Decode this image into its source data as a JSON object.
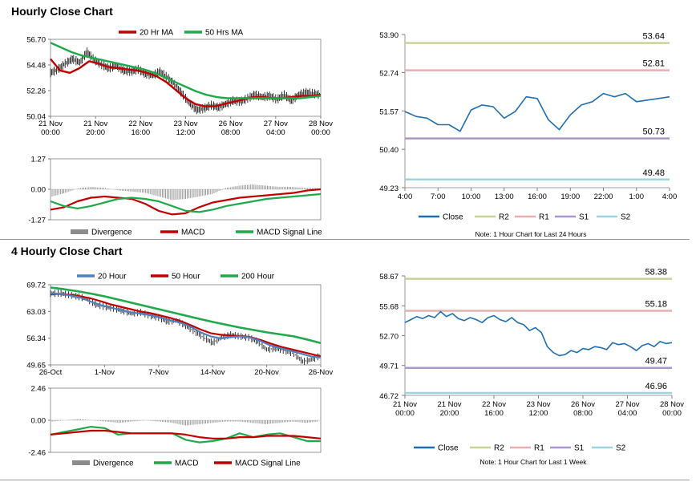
{
  "sections": {
    "hourly_title": "Hourly Close Chart",
    "four_hourly_title": "4 Hourly Close Chart"
  },
  "colors": {
    "ma_red": "#c00000",
    "ma_green": "#1ea94a",
    "blue": "#4f81bd",
    "close_line": "#1f6eb0",
    "r2": "#c6d49a",
    "r1": "#e7b0b0",
    "s1": "#ab97c9",
    "s2": "#9fd3df",
    "divergence": "#8c8c8c"
  },
  "chart_data": [
    {
      "id": "hourly-price",
      "type": "line",
      "title": "",
      "x_ticks": [
        "21 Nov\n00:00",
        "21 Nov\n20:00",
        "22 Nov\n16:00",
        "23 Nov\n12:00",
        "26 Nov\n08:00",
        "27 Nov\n04:00",
        "28 Nov\n00:00"
      ],
      "y_ticks": [
        50.04,
        52.26,
        54.48,
        56.7
      ],
      "ylim": [
        50.04,
        56.7
      ],
      "legend": [
        "20 Hr MA",
        "50 Hrs MA"
      ],
      "series": [
        {
          "name": "Close",
          "values": [
            53.8,
            54.1,
            54.6,
            55.0,
            54.7,
            55.6,
            54.9,
            54.5,
            54.2,
            54.4,
            54.0,
            53.9,
            54.1,
            53.7,
            53.6,
            53.9,
            53.4,
            52.8,
            52.0,
            51.2,
            50.6,
            50.7,
            51.0,
            50.8,
            51.1,
            51.4,
            51.3,
            51.6,
            51.9,
            51.7,
            51.8,
            51.5,
            51.9,
            51.4,
            51.9,
            52.1,
            52.0,
            51.9
          ]
        },
        {
          "name": "20 Hr MA",
          "values": [
            55.0,
            54.0,
            53.8,
            54.2,
            54.8,
            54.6,
            54.3,
            54.2,
            54.1,
            54.0,
            53.8,
            53.5,
            53.0,
            52.3,
            51.6,
            51.1,
            50.9,
            50.9,
            51.1,
            51.3,
            51.5,
            51.7,
            51.7,
            51.6,
            51.6,
            51.7,
            51.8,
            51.8,
            51.9
          ]
        },
        {
          "name": "50 Hrs MA",
          "values": [
            56.4,
            56.0,
            55.6,
            55.3,
            55.1,
            54.9,
            54.7,
            54.5,
            54.3,
            54.1,
            53.8,
            53.4,
            53.0,
            52.6,
            52.2,
            51.9,
            51.7,
            51.6,
            51.6,
            51.6,
            51.6,
            51.6,
            51.6,
            51.6,
            51.6,
            51.7,
            51.8
          ]
        }
      ]
    },
    {
      "id": "hourly-macd",
      "type": "line",
      "y_ticks": [
        -1.27,
        0.0,
        1.27
      ],
      "ylim": [
        -1.27,
        1.27
      ],
      "legend": [
        "Divergence",
        "MACD",
        "MACD Signal Line"
      ],
      "series": [
        {
          "name": "Divergence",
          "values": [
            -0.3,
            -0.15,
            0.05,
            0.1,
            0.05,
            -0.05,
            -0.1,
            -0.15,
            -0.3,
            -0.45,
            -0.4,
            -0.3,
            -0.2,
            0.05,
            0.15,
            0.2,
            0.15,
            0.1,
            0.1,
            0.05,
            0.05
          ]
        },
        {
          "name": "MACD",
          "values": [
            -0.85,
            -0.75,
            -0.5,
            -0.35,
            -0.3,
            -0.35,
            -0.4,
            -0.6,
            -0.9,
            -1.05,
            -1.0,
            -0.75,
            -0.55,
            -0.45,
            -0.35,
            -0.3,
            -0.25,
            -0.2,
            -0.15,
            -0.05,
            0.0
          ]
        },
        {
          "name": "MACD Signal Line",
          "values": [
            -0.5,
            -0.7,
            -0.8,
            -0.7,
            -0.55,
            -0.4,
            -0.35,
            -0.4,
            -0.5,
            -0.7,
            -0.9,
            -0.95,
            -0.85,
            -0.7,
            -0.6,
            -0.5,
            -0.4,
            -0.35,
            -0.3,
            -0.25,
            -0.2
          ]
        }
      ]
    },
    {
      "id": "hourly-levels",
      "type": "line",
      "y_ticks": [
        49.23,
        50.4,
        51.57,
        52.74,
        53.9
      ],
      "ylim": [
        49.23,
        53.9
      ],
      "x_ticks": [
        "4:00",
        "7:00",
        "10:00",
        "13:00",
        "16:00",
        "19:00",
        "22:00",
        "1:00",
        "4:00"
      ],
      "legend": [
        "Close",
        "R2",
        "R1",
        "S1",
        "S2"
      ],
      "note": "Note: 1 Hour Chart for Last 24 Hours",
      "levels": [
        {
          "name": "R2",
          "value": 53.64,
          "label": "53.64"
        },
        {
          "name": "R1",
          "value": 52.81,
          "label": "52.81"
        },
        {
          "name": "S1",
          "value": 50.73,
          "label": "50.73"
        },
        {
          "name": "S2",
          "value": 49.48,
          "label": "49.48"
        }
      ],
      "series": [
        {
          "name": "Close",
          "values": [
            51.55,
            51.4,
            51.35,
            51.15,
            51.15,
            50.95,
            51.6,
            51.75,
            51.7,
            51.35,
            51.55,
            52.0,
            51.95,
            51.3,
            51.0,
            51.45,
            51.75,
            51.85,
            52.1,
            52.0,
            52.1,
            51.85,
            51.9,
            51.95,
            52.0
          ]
        }
      ]
    },
    {
      "id": "four-hourly-price",
      "type": "line",
      "x_ticks": [
        "26-Oct",
        "1-Nov",
        "7-Nov",
        "14-Nov",
        "20-Nov",
        "26-Nov"
      ],
      "y_ticks": [
        49.65,
        56.34,
        63.03,
        69.72
      ],
      "ylim": [
        49.65,
        69.72
      ],
      "legend": [
        "20 Hour",
        "50 Hour",
        "200 Hour"
      ],
      "series": [
        {
          "name": "Close",
          "values": [
            67.5,
            67.6,
            67.2,
            66.8,
            66.2,
            64.8,
            64.2,
            63.8,
            63.2,
            62.5,
            62.8,
            62.0,
            61.5,
            60.5,
            60.8,
            59.5,
            58.0,
            56.5,
            55.2,
            56.5,
            57.2,
            56.8,
            56.5,
            55.5,
            53.5,
            53.8,
            53.2,
            52.5,
            50.5,
            51.0,
            52.0
          ]
        },
        {
          "name": "20 Hour",
          "values": [
            67.6,
            67.4,
            67.0,
            66.5,
            65.5,
            64.6,
            64.0,
            63.4,
            62.8,
            62.5,
            62.1,
            61.5,
            60.8,
            60.2,
            59.2,
            57.8,
            56.8,
            56.3,
            56.6,
            56.8,
            56.5,
            55.6,
            54.5,
            53.8,
            53.2,
            52.5,
            51.8,
            51.5
          ]
        },
        {
          "name": "50 Hour",
          "values": [
            67.4,
            67.4,
            67.2,
            66.8,
            66.3,
            65.6,
            64.8,
            64.2,
            63.6,
            63.0,
            62.6,
            62.0,
            61.4,
            60.6,
            59.6,
            58.5,
            57.6,
            57.2,
            57.0,
            56.9,
            56.6,
            55.9,
            55.0,
            54.2,
            53.6,
            53.0,
            52.4,
            51.8
          ]
        },
        {
          "name": "200 Hour",
          "values": [
            69.0,
            68.6,
            68.1,
            67.5,
            66.8,
            66.0,
            65.2,
            64.4,
            63.6,
            62.8,
            62.0,
            61.2,
            60.4,
            59.7,
            59.0,
            58.4,
            57.8,
            57.3,
            56.8,
            56.0,
            55.1
          ]
        }
      ]
    },
    {
      "id": "four-hourly-macd",
      "type": "line",
      "y_ticks": [
        -2.46,
        0.0,
        2.46
      ],
      "ylim": [
        -2.46,
        2.46
      ],
      "legend": [
        "Divergence",
        "MACD",
        "MACD Signal Line"
      ],
      "series": [
        {
          "name": "Divergence",
          "values": [
            -0.1,
            0.0,
            0.1,
            0.0,
            -0.1,
            -0.2,
            -0.1,
            0.0,
            -0.1,
            -0.2,
            -0.4,
            -0.3,
            -0.2,
            -0.1,
            -0.1,
            -0.2,
            -0.3,
            -0.2,
            -0.1,
            -0.2,
            -0.1
          ]
        },
        {
          "name": "MACD",
          "values": [
            -1.1,
            -0.9,
            -0.7,
            -0.5,
            -0.6,
            -1.1,
            -1.0,
            -1.0,
            -1.0,
            -1.0,
            -1.5,
            -1.7,
            -1.6,
            -1.4,
            -1.0,
            -1.3,
            -1.1,
            -1.0,
            -1.3,
            -1.6,
            -1.6
          ]
        },
        {
          "name": "MACD Signal Line",
          "values": [
            -1.1,
            -1.0,
            -0.9,
            -0.8,
            -0.8,
            -0.9,
            -1.0,
            -1.0,
            -1.0,
            -1.0,
            -1.1,
            -1.3,
            -1.4,
            -1.4,
            -1.3,
            -1.3,
            -1.2,
            -1.2,
            -1.2,
            -1.3,
            -1.4
          ]
        }
      ]
    },
    {
      "id": "four-hourly-levels",
      "type": "line",
      "y_ticks": [
        46.72,
        49.71,
        52.7,
        55.68,
        58.67
      ],
      "ylim": [
        46.72,
        58.67
      ],
      "x_ticks": [
        "21 Nov\n00:00",
        "21 Nov\n20:00",
        "22 Nov\n16:00",
        "23 Nov\n12:00",
        "26 Nov\n08:00",
        "27 Nov\n04:00",
        "28 Nov\n00:00"
      ],
      "legend": [
        "Close",
        "R2",
        "R1",
        "S1",
        "S2"
      ],
      "note": "Note: 1 Hour Chart for Last 1 Week",
      "levels": [
        {
          "name": "R2",
          "value": 58.38,
          "label": "58.38"
        },
        {
          "name": "R1",
          "value": 55.18,
          "label": "55.18"
        },
        {
          "name": "S1",
          "value": 49.47,
          "label": "49.47"
        },
        {
          "name": "S2",
          "value": 46.96,
          "label": "46.96"
        }
      ],
      "series": [
        {
          "name": "Close",
          "values": [
            54.0,
            54.3,
            54.6,
            54.4,
            54.7,
            54.5,
            55.1,
            54.6,
            54.9,
            54.4,
            54.2,
            54.5,
            54.3,
            54.0,
            54.5,
            54.7,
            54.3,
            54.1,
            54.5,
            54.0,
            53.8,
            53.2,
            53.5,
            53.0,
            51.6,
            51.0,
            50.7,
            50.8,
            51.2,
            51.0,
            51.4,
            51.3,
            51.6,
            51.5,
            51.3,
            52.0,
            51.8,
            51.9,
            51.6,
            51.2,
            51.7,
            51.9,
            51.6,
            52.1,
            51.9,
            52.0
          ]
        }
      ]
    }
  ]
}
